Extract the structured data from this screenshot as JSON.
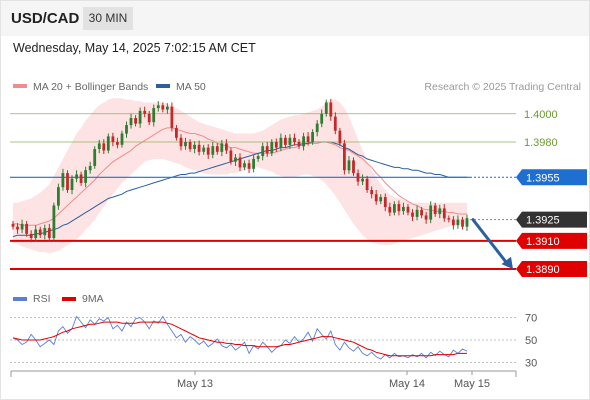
{
  "header": {
    "symbol": "USD/CAD",
    "interval": "30 MIN"
  },
  "timestamp": "Wednesday, May 14, 2025 7:02:15 AM CET",
  "credit": "Research © 2025 Trading Central",
  "colors": {
    "band_fill": "#fde3e3",
    "band_line": "#f08c8c",
    "ma50": "#2c5f9e",
    "candle_up": "#2e7d32",
    "candle_down": "#c62828",
    "pivot": "#1f6fd1",
    "support": "#e00000",
    "resistance": "#8db654",
    "last_price": "#333333",
    "forecast_arrow": "#2c5f9e",
    "rsi": "#5b7fd6",
    "rsi_ma": "#e00000"
  },
  "chart_data": [
    {
      "type": "candlestick",
      "title": "",
      "xlabel": "",
      "ylabel": "",
      "x_tick_labels": [
        "May 13",
        "May 14",
        "May 15"
      ],
      "ylim": [
        1.3878,
        1.4014
      ],
      "grid": false,
      "legend": [
        {
          "name": "MA 20 + Bollinger Bands",
          "color": "#f08c8c"
        },
        {
          "name": "MA 50",
          "color": "#2c5f9e"
        }
      ],
      "close": [
        1.392,
        1.3918,
        1.3922,
        1.3915,
        1.3912,
        1.3918,
        1.3914,
        1.3919,
        1.3912,
        1.3935,
        1.3948,
        1.3958,
        1.3946,
        1.3954,
        1.3957,
        1.3951,
        1.396,
        1.3963,
        1.3975,
        1.3979,
        1.3974,
        1.3984,
        1.398,
        1.3978,
        1.3986,
        1.3992,
        1.3997,
        1.3993,
        1.4002,
        1.4,
        1.3994,
        1.4004,
        1.4006,
        1.4003,
        1.4005,
        1.399,
        1.3983,
        1.3977,
        1.398,
        1.3975,
        1.3978,
        1.3973,
        1.3976,
        1.3971,
        1.3977,
        1.3973,
        1.3979,
        1.3974,
        1.3966,
        1.3969,
        1.3962,
        1.3965,
        1.3961,
        1.3968,
        1.397,
        1.3977,
        1.3972,
        1.398,
        1.3976,
        1.3983,
        1.3978,
        1.3983,
        1.398,
        1.3977,
        1.3984,
        1.398,
        1.3987,
        1.3993,
        1.4,
        1.4008,
        1.3998,
        1.3988,
        1.3979,
        1.396,
        1.3967,
        1.3958,
        1.3952,
        1.3954,
        1.3946,
        1.3943,
        1.3938,
        1.3941,
        1.3934,
        1.393,
        1.3936,
        1.3931,
        1.3934,
        1.393,
        1.3927,
        1.3932,
        1.3928,
        1.3925,
        1.3935,
        1.3929,
        1.3933,
        1.3926,
        1.3925,
        1.3921,
        1.3925,
        1.392,
        1.3926
      ],
      "ma20": [
        1.3922,
        1.3922,
        1.3921,
        1.3921,
        1.3921,
        1.3921,
        1.3922,
        1.3923,
        1.3924,
        1.3926,
        1.3929,
        1.3932,
        1.3935,
        1.3938,
        1.3941,
        1.3944,
        1.3947,
        1.395,
        1.3953,
        1.3957,
        1.396,
        1.3963,
        1.3966,
        1.3968,
        1.397,
        1.3972,
        1.3974,
        1.3977,
        1.3979,
        1.3981,
        1.3983,
        1.3985,
        1.3987,
        1.3989,
        1.399,
        1.399,
        1.3989,
        1.3988,
        1.3987,
        1.3986,
        1.3986,
        1.3985,
        1.3984,
        1.3982,
        1.3981,
        1.3979,
        1.3978,
        1.3977,
        1.3976,
        1.3976,
        1.3975,
        1.3974,
        1.3973,
        1.3972,
        1.3972,
        1.3972,
        1.3972,
        1.3972,
        1.3973,
        1.3974,
        1.3975,
        1.3976,
        1.3976,
        1.3977,
        1.3978,
        1.3979,
        1.3979,
        1.3979,
        1.398,
        1.398,
        1.3979,
        1.3978,
        1.3976,
        1.3975,
        1.3974,
        1.3972,
        1.397,
        1.3968,
        1.3965,
        1.3962,
        1.3958,
        1.3955,
        1.3951,
        1.3948,
        1.3945,
        1.3942,
        1.394,
        1.3938,
        1.3936,
        1.3935,
        1.3933,
        1.3932,
        1.3932,
        1.3931,
        1.3931,
        1.3931,
        1.393,
        1.393,
        1.3929,
        1.3929,
        1.3929
      ],
      "band_upper": [
        1.3937,
        1.3937,
        1.3938,
        1.3939,
        1.394,
        1.3942,
        1.3944,
        1.3947,
        1.395,
        1.3956,
        1.3962,
        1.3968,
        1.3974,
        1.398,
        1.3986,
        1.399,
        1.3995,
        1.3999,
        1.4003,
        1.4006,
        1.4008,
        1.401,
        1.4011,
        1.4011,
        1.4011,
        1.401,
        1.401,
        1.4009,
        1.4009,
        1.4008,
        1.4008,
        1.4008,
        1.4008,
        1.4008,
        1.4007,
        1.4006,
        1.4004,
        1.4002,
        1.4,
        1.3998,
        1.3996,
        1.3994,
        1.3993,
        1.3992,
        1.3991,
        1.399,
        1.3989,
        1.3988,
        1.3987,
        1.3986,
        1.3986,
        1.3986,
        1.3986,
        1.3986,
        1.3987,
        1.3988,
        1.399,
        1.3992,
        1.3994,
        1.3996,
        1.3997,
        1.3998,
        1.3999,
        1.3999,
        1.4,
        1.4001,
        1.4002,
        1.4003,
        1.4005,
        1.4008,
        1.401,
        1.401,
        1.4008,
        1.4004,
        1.3998,
        1.399,
        1.3982,
        1.3974,
        1.3966,
        1.396,
        1.3955,
        1.395,
        1.3946,
        1.3943,
        1.3941,
        1.394,
        1.3939,
        1.3938,
        1.3937,
        1.3937,
        1.3937,
        1.3937,
        1.3937,
        1.3937,
        1.3937,
        1.3937,
        1.3937,
        1.3937,
        1.3937,
        1.3937,
        1.3937
      ],
      "band_lower": [
        1.3908,
        1.3908,
        1.3906,
        1.3905,
        1.3904,
        1.3903,
        1.3902,
        1.3902,
        1.3901,
        1.3902,
        1.3903,
        1.3905,
        1.3907,
        1.3909,
        1.3911,
        1.3914,
        1.3918,
        1.3921,
        1.3925,
        1.393,
        1.3934,
        1.3939,
        1.3943,
        1.3947,
        1.3951,
        1.3954,
        1.3957,
        1.396,
        1.3963,
        1.3966,
        1.3967,
        1.3968,
        1.3968,
        1.3968,
        1.3967,
        1.3966,
        1.3965,
        1.3964,
        1.3962,
        1.3961,
        1.396,
        1.3959,
        1.3958,
        1.3957,
        1.3957,
        1.3957,
        1.3957,
        1.3957,
        1.3958,
        1.3958,
        1.3959,
        1.396,
        1.3961,
        1.3962,
        1.3962,
        1.3961,
        1.396,
        1.3959,
        1.3957,
        1.3956,
        1.3955,
        1.3955,
        1.3955,
        1.3956,
        1.3957,
        1.3957,
        1.3956,
        1.3955,
        1.3953,
        1.395,
        1.3946,
        1.3942,
        1.3937,
        1.3932,
        1.3927,
        1.3922,
        1.3918,
        1.3914,
        1.3911,
        1.3909,
        1.3908,
        1.3907,
        1.3907,
        1.3907,
        1.3908,
        1.3909,
        1.391,
        1.3911,
        1.3912,
        1.3913,
        1.3914,
        1.3915,
        1.3916,
        1.3917,
        1.3918,
        1.3919,
        1.392,
        1.3921,
        1.3922,
        1.3922,
        1.3922
      ],
      "ma50": [
        1.3913,
        1.3914,
        1.3914,
        1.3914,
        1.3914,
        1.3915,
        1.3915,
        1.3916,
        1.3917,
        1.3918,
        1.3919,
        1.3921,
        1.3922,
        1.3924,
        1.3926,
        1.3928,
        1.393,
        1.3932,
        1.3934,
        1.3936,
        1.3938,
        1.394,
        1.3941,
        1.3942,
        1.3943,
        1.3945,
        1.3946,
        1.3947,
        1.3948,
        1.3949,
        1.395,
        1.3951,
        1.3952,
        1.3953,
        1.3954,
        1.3955,
        1.3956,
        1.3957,
        1.3957,
        1.3958,
        1.3958,
        1.3959,
        1.396,
        1.3961,
        1.3962,
        1.3963,
        1.3964,
        1.3965,
        1.3966,
        1.3967,
        1.3968,
        1.3969,
        1.397,
        1.3971,
        1.3972,
        1.3973,
        1.3974,
        1.3974,
        1.3975,
        1.3976,
        1.3976,
        1.3977,
        1.3978,
        1.3978,
        1.3979,
        1.3979,
        1.398,
        1.398,
        1.398,
        1.398,
        1.398,
        1.3979,
        1.3978,
        1.3976,
        1.3975,
        1.3973,
        1.3971,
        1.397,
        1.3968,
        1.3967,
        1.3966,
        1.3965,
        1.3964,
        1.3963,
        1.3962,
        1.3962,
        1.3961,
        1.3961,
        1.396,
        1.396,
        1.3959,
        1.3958,
        1.3958,
        1.3957,
        1.3957,
        1.3956,
        1.3955,
        1.3955,
        1.3955,
        1.3955,
        1.3955
      ],
      "levels": [
        {
          "label": "1.4000",
          "value": 1.4,
          "kind": "resistance"
        },
        {
          "label": "1.3980",
          "value": 1.398,
          "kind": "resistance"
        },
        {
          "label": "1.3955",
          "value": 1.3955,
          "kind": "pivot"
        },
        {
          "label": "1.3925",
          "value": 1.3925,
          "kind": "last"
        },
        {
          "label": "1.3910",
          "value": 1.391,
          "kind": "support"
        },
        {
          "label": "1.3890",
          "value": 1.389,
          "kind": "support"
        }
      ],
      "forecast": {
        "from": 1.3925,
        "to": 1.389
      }
    },
    {
      "type": "line",
      "title": "",
      "legend": [
        {
          "name": "RSI",
          "color": "#5b7fd6"
        },
        {
          "name": "9MA",
          "color": "#e00000"
        }
      ],
      "ylim": [
        25,
        75
      ],
      "y_ticks": [
        70,
        50,
        30
      ],
      "rsi": [
        52,
        50,
        46,
        48,
        55,
        50,
        44,
        47,
        50,
        46,
        58,
        62,
        56,
        60,
        71,
        66,
        61,
        68,
        64,
        69,
        67,
        70,
        60,
        63,
        58,
        66,
        62,
        69,
        70,
        66,
        60,
        67,
        65,
        71,
        64,
        58,
        52,
        55,
        48,
        53,
        50,
        46,
        49,
        44,
        47,
        51,
        45,
        43,
        46,
        41,
        44,
        48,
        38,
        45,
        42,
        48,
        44,
        39,
        43,
        45,
        50,
        47,
        53,
        48,
        51,
        57,
        49,
        60,
        55,
        51,
        58,
        46,
        41,
        48,
        43,
        40,
        44,
        38,
        36,
        39,
        35,
        33,
        37,
        34,
        38,
        35,
        36,
        34,
        37,
        35,
        38,
        34,
        39,
        36,
        40,
        37,
        35,
        41,
        38,
        42,
        40
      ],
      "rsi_ma": [
        52,
        51,
        50,
        50,
        50,
        50,
        50,
        51,
        52,
        53,
        55,
        57,
        58,
        60,
        61,
        62,
        63,
        64,
        64,
        65,
        66,
        66,
        66,
        66,
        65,
        65,
        65,
        65,
        66,
        66,
        66,
        66,
        66,
        66,
        65,
        64,
        62,
        60,
        58,
        56,
        54,
        52,
        51,
        50,
        49,
        48,
        48,
        47,
        47,
        46,
        46,
        45,
        45,
        45,
        44,
        44,
        44,
        44,
        44,
        45,
        46,
        46,
        47,
        48,
        49,
        50,
        51,
        52,
        53,
        53,
        53,
        52,
        51,
        50,
        49,
        48,
        46,
        44,
        42,
        41,
        39,
        38,
        37,
        36,
        36,
        36,
        36,
        36,
        36,
        36,
        36,
        36,
        36,
        37,
        37,
        37,
        37,
        37,
        38,
        38,
        38
      ]
    }
  ]
}
